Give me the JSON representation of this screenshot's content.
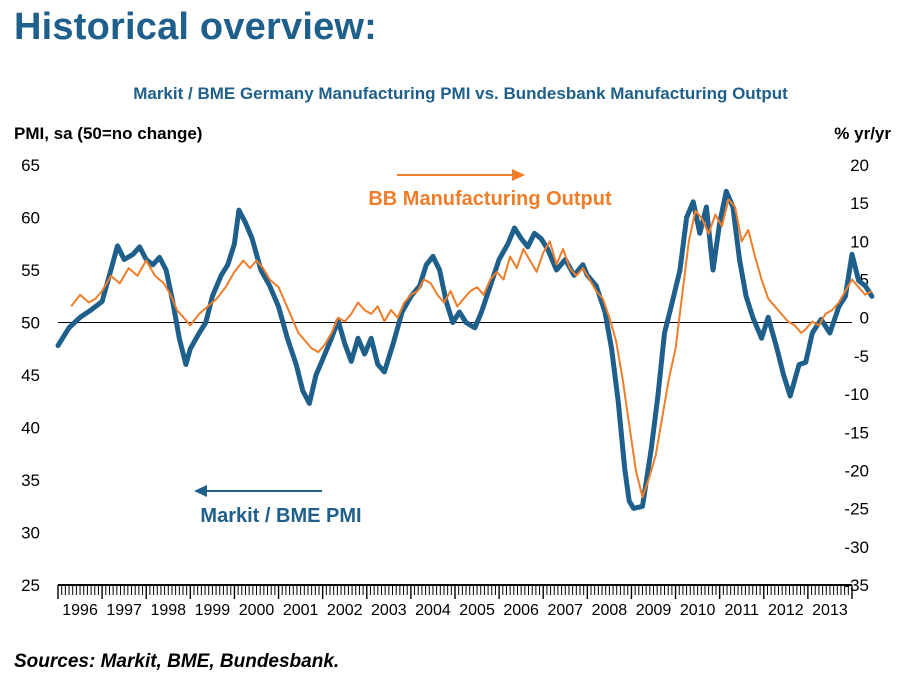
{
  "heading": "Historical overview:",
  "sources": "Sources: Markit, BME, Bundesbank.",
  "chart_data": {
    "type": "line",
    "title": "Markit / BME Germany Manufacturing PMI vs. Bundesbank Manufacturing Output",
    "ylabel_left": "PMI, sa (50=no change)",
    "ylabel_right": "% yr/yr",
    "ylim_left": [
      25,
      65
    ],
    "ylim_right": [
      -35,
      20
    ],
    "yticks_left": [
      "25",
      "30",
      "35",
      "40",
      "45",
      "50",
      "55",
      "60",
      "65"
    ],
    "yticks_right": [
      "-35",
      "-30",
      "-25",
      "-20",
      "-15",
      "-10",
      "-5",
      "0",
      "5",
      "10",
      "15",
      "20"
    ],
    "x_labels": [
      "1996",
      "1997",
      "1998",
      "1999",
      "2000",
      "2001",
      "2002",
      "2003",
      "2004",
      "2005",
      "2006",
      "2007",
      "2008",
      "2009",
      "2010",
      "2011",
      "2012",
      "2013"
    ],
    "x_range": [
      1996.0,
      2014.0
    ],
    "grid": false,
    "reference_line_left": 50,
    "colors": {
      "pmi": "#1f5f8b",
      "output": "#f07d2a"
    },
    "series": [
      {
        "name": "Markit / BME PMI",
        "axis": "left",
        "points": [
          [
            1996.0,
            47.8
          ],
          [
            1996.25,
            49.5
          ],
          [
            1996.5,
            50.5
          ],
          [
            1996.75,
            51.2
          ],
          [
            1997.0,
            52.0
          ],
          [
            1997.2,
            55.0
          ],
          [
            1997.35,
            57.3
          ],
          [
            1997.5,
            56.0
          ],
          [
            1997.7,
            56.5
          ],
          [
            1997.85,
            57.2
          ],
          [
            1998.0,
            56.0
          ],
          [
            1998.15,
            55.5
          ],
          [
            1998.3,
            56.2
          ],
          [
            1998.45,
            55.0
          ],
          [
            1998.6,
            52.0
          ],
          [
            1998.75,
            48.5
          ],
          [
            1998.9,
            46.0
          ],
          [
            1999.0,
            47.5
          ],
          [
            1999.2,
            49.0
          ],
          [
            1999.35,
            50.0
          ],
          [
            1999.5,
            52.5
          ],
          [
            1999.7,
            54.5
          ],
          [
            1999.85,
            55.5
          ],
          [
            2000.0,
            57.5
          ],
          [
            2000.1,
            60.7
          ],
          [
            2000.25,
            59.5
          ],
          [
            2000.4,
            58.0
          ],
          [
            2000.6,
            55.0
          ],
          [
            2000.8,
            53.5
          ],
          [
            2001.0,
            51.5
          ],
          [
            2001.2,
            48.5
          ],
          [
            2001.4,
            46.0
          ],
          [
            2001.55,
            43.5
          ],
          [
            2001.7,
            42.3
          ],
          [
            2001.85,
            45.0
          ],
          [
            2002.0,
            46.5
          ],
          [
            2002.2,
            48.5
          ],
          [
            2002.35,
            50.2
          ],
          [
            2002.5,
            48.0
          ],
          [
            2002.65,
            46.3
          ],
          [
            2002.8,
            48.5
          ],
          [
            2002.95,
            47.0
          ],
          [
            2003.1,
            48.5
          ],
          [
            2003.25,
            46.0
          ],
          [
            2003.4,
            45.3
          ],
          [
            2003.6,
            48.0
          ],
          [
            2003.8,
            51.0
          ],
          [
            2004.0,
            52.5
          ],
          [
            2004.2,
            53.5
          ],
          [
            2004.35,
            55.5
          ],
          [
            2004.5,
            56.3
          ],
          [
            2004.65,
            55.0
          ],
          [
            2004.8,
            52.0
          ],
          [
            2004.95,
            50.0
          ],
          [
            2005.1,
            51.0
          ],
          [
            2005.25,
            50.0
          ],
          [
            2005.45,
            49.5
          ],
          [
            2005.6,
            51.0
          ],
          [
            2005.8,
            53.5
          ],
          [
            2006.0,
            56.0
          ],
          [
            2006.2,
            57.5
          ],
          [
            2006.35,
            59.0
          ],
          [
            2006.5,
            58.0
          ],
          [
            2006.65,
            57.2
          ],
          [
            2006.8,
            58.5
          ],
          [
            2006.95,
            58.0
          ],
          [
            2007.1,
            57.0
          ],
          [
            2007.3,
            55.0
          ],
          [
            2007.5,
            56.0
          ],
          [
            2007.7,
            54.5
          ],
          [
            2007.9,
            55.5
          ],
          [
            2008.0,
            54.5
          ],
          [
            2008.2,
            53.5
          ],
          [
            2008.4,
            51.0
          ],
          [
            2008.55,
            47.5
          ],
          [
            2008.7,
            42.5
          ],
          [
            2008.85,
            36.0
          ],
          [
            2008.95,
            33.0
          ],
          [
            2009.05,
            32.3
          ],
          [
            2009.25,
            32.5
          ],
          [
            2009.45,
            38.0
          ],
          [
            2009.6,
            43.0
          ],
          [
            2009.75,
            49.0
          ],
          [
            2009.9,
            51.5
          ],
          [
            2010.1,
            55.0
          ],
          [
            2010.25,
            60.0
          ],
          [
            2010.4,
            61.5
          ],
          [
            2010.55,
            58.5
          ],
          [
            2010.7,
            61.0
          ],
          [
            2010.85,
            55.0
          ],
          [
            2011.0,
            59.5
          ],
          [
            2011.15,
            62.5
          ],
          [
            2011.3,
            61.0
          ],
          [
            2011.45,
            56.0
          ],
          [
            2011.6,
            52.5
          ],
          [
            2011.75,
            50.5
          ],
          [
            2011.95,
            48.5
          ],
          [
            2012.1,
            50.5
          ],
          [
            2012.3,
            47.5
          ],
          [
            2012.45,
            45.0
          ],
          [
            2012.6,
            43.0
          ],
          [
            2012.8,
            46.0
          ],
          [
            2012.95,
            46.2
          ],
          [
            2013.1,
            49.0
          ],
          [
            2013.3,
            50.3
          ],
          [
            2013.5,
            49.0
          ],
          [
            2013.7,
            51.5
          ],
          [
            2013.85,
            52.5
          ],
          [
            2014.0,
            56.5
          ],
          [
            2014.15,
            54.0
          ],
          [
            2014.3,
            53.5
          ],
          [
            2014.45,
            52.5
          ]
        ]
      },
      {
        "name": "BB Manufacturing Output",
        "axis": "right",
        "points": [
          [
            1996.3,
            1.5
          ],
          [
            1996.5,
            3.0
          ],
          [
            1996.7,
            2.0
          ],
          [
            1996.85,
            2.5
          ],
          [
            1997.0,
            3.5
          ],
          [
            1997.2,
            5.5
          ],
          [
            1997.4,
            4.5
          ],
          [
            1997.6,
            6.5
          ],
          [
            1997.8,
            5.5
          ],
          [
            1998.0,
            7.5
          ],
          [
            1998.2,
            5.5
          ],
          [
            1998.4,
            4.5
          ],
          [
            1998.55,
            3.0
          ],
          [
            1998.7,
            1.0
          ],
          [
            1998.85,
            0.0
          ],
          [
            1999.0,
            -1.0
          ],
          [
            1999.2,
            0.5
          ],
          [
            1999.4,
            1.5
          ],
          [
            1999.6,
            2.5
          ],
          [
            1999.8,
            4.0
          ],
          [
            2000.0,
            6.0
          ],
          [
            2000.2,
            7.5
          ],
          [
            2000.35,
            6.5
          ],
          [
            2000.5,
            7.5
          ],
          [
            2000.65,
            6.5
          ],
          [
            2000.8,
            5.0
          ],
          [
            2001.0,
            4.0
          ],
          [
            2001.15,
            2.0
          ],
          [
            2001.3,
            0.0
          ],
          [
            2001.45,
            -2.0
          ],
          [
            2001.6,
            -3.0
          ],
          [
            2001.75,
            -4.0
          ],
          [
            2001.9,
            -4.5
          ],
          [
            2002.05,
            -3.5
          ],
          [
            2002.2,
            -2.0
          ],
          [
            2002.35,
            0.0
          ],
          [
            2002.5,
            -0.5
          ],
          [
            2002.65,
            0.5
          ],
          [
            2002.8,
            2.0
          ],
          [
            2002.95,
            1.0
          ],
          [
            2003.1,
            0.5
          ],
          [
            2003.25,
            1.5
          ],
          [
            2003.4,
            -0.5
          ],
          [
            2003.55,
            1.0
          ],
          [
            2003.7,
            0.0
          ],
          [
            2003.85,
            2.0
          ],
          [
            2004.0,
            3.0
          ],
          [
            2004.15,
            3.5
          ],
          [
            2004.3,
            5.0
          ],
          [
            2004.45,
            4.5
          ],
          [
            2004.6,
            3.0
          ],
          [
            2004.75,
            2.0
          ],
          [
            2004.9,
            3.5
          ],
          [
            2005.05,
            1.5
          ],
          [
            2005.2,
            2.5
          ],
          [
            2005.35,
            3.5
          ],
          [
            2005.5,
            4.0
          ],
          [
            2005.65,
            3.0
          ],
          [
            2005.8,
            5.0
          ],
          [
            2005.95,
            6.0
          ],
          [
            2006.1,
            5.0
          ],
          [
            2006.25,
            8.0
          ],
          [
            2006.4,
            6.5
          ],
          [
            2006.55,
            9.0
          ],
          [
            2006.7,
            7.5
          ],
          [
            2006.85,
            6.0
          ],
          [
            2007.0,
            8.5
          ],
          [
            2007.15,
            10.0
          ],
          [
            2007.3,
            7.0
          ],
          [
            2007.45,
            9.0
          ],
          [
            2007.6,
            6.5
          ],
          [
            2007.75,
            5.5
          ],
          [
            2007.9,
            6.5
          ],
          [
            2008.05,
            5.0
          ],
          [
            2008.2,
            3.5
          ],
          [
            2008.35,
            2.5
          ],
          [
            2008.5,
            0.0
          ],
          [
            2008.65,
            -3.0
          ],
          [
            2008.8,
            -8.0
          ],
          [
            2008.95,
            -14.0
          ],
          [
            2009.1,
            -20.0
          ],
          [
            2009.25,
            -23.5
          ],
          [
            2009.4,
            -21.0
          ],
          [
            2009.55,
            -18.0
          ],
          [
            2009.7,
            -13.0
          ],
          [
            2009.85,
            -8.0
          ],
          [
            2010.0,
            -4.0
          ],
          [
            2010.15,
            3.0
          ],
          [
            2010.3,
            10.0
          ],
          [
            2010.45,
            14.0
          ],
          [
            2010.6,
            13.0
          ],
          [
            2010.75,
            11.0
          ],
          [
            2010.9,
            13.5
          ],
          [
            2011.05,
            12.0
          ],
          [
            2011.2,
            15.5
          ],
          [
            2011.35,
            14.5
          ],
          [
            2011.5,
            10.0
          ],
          [
            2011.65,
            11.5
          ],
          [
            2011.8,
            8.0
          ],
          [
            2011.95,
            5.0
          ],
          [
            2012.1,
            2.5
          ],
          [
            2012.25,
            1.5
          ],
          [
            2012.4,
            0.5
          ],
          [
            2012.55,
            -0.5
          ],
          [
            2012.7,
            -1.0
          ],
          [
            2012.85,
            -2.0
          ],
          [
            2012.95,
            -1.5
          ],
          [
            2013.1,
            -0.5
          ],
          [
            2013.25,
            -1.0
          ],
          [
            2013.4,
            0.5
          ],
          [
            2013.55,
            1.0
          ],
          [
            2013.7,
            2.0
          ],
          [
            2013.85,
            3.5
          ],
          [
            2014.0,
            5.0
          ],
          [
            2014.15,
            4.0
          ],
          [
            2014.3,
            3.0
          ],
          [
            2014.45,
            3.5
          ]
        ]
      }
    ],
    "annotations": [
      {
        "text": "BB Manufacturing Output",
        "arrow": "right",
        "series": "output"
      },
      {
        "text": "Markit / BME PMI",
        "arrow": "left",
        "series": "pmi"
      }
    ]
  }
}
